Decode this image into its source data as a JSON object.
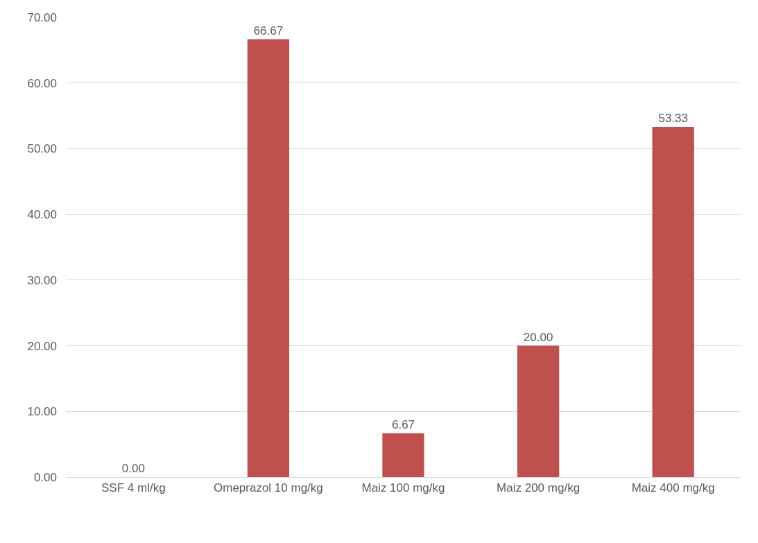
{
  "chart_data": {
    "type": "bar",
    "categories": [
      "SSF 4 ml/kg",
      "Omeprazol 10 mg/kg",
      "Maiz 100 mg/kg",
      "Maiz 200 mg/kg",
      "Maiz 400 mg/kg"
    ],
    "values": [
      0,
      66.67,
      6.67,
      20,
      53.33
    ],
    "value_labels": [
      "0.00",
      "66.67",
      "6.67",
      "20.00",
      "53.33"
    ],
    "color": "#c0504d",
    "ylim": [
      0,
      70
    ],
    "yticks": [
      {
        "value": 0,
        "label": "0.00"
      },
      {
        "value": 10,
        "label": "10.00"
      },
      {
        "value": 20,
        "label": "20.00"
      },
      {
        "value": 30,
        "label": "30.00"
      },
      {
        "value": 40,
        "label": "40.00"
      },
      {
        "value": 50,
        "label": "50.00"
      },
      {
        "value": 60,
        "label": "60.00"
      },
      {
        "value": 70,
        "label": "70.00"
      }
    ],
    "grid": "y"
  }
}
